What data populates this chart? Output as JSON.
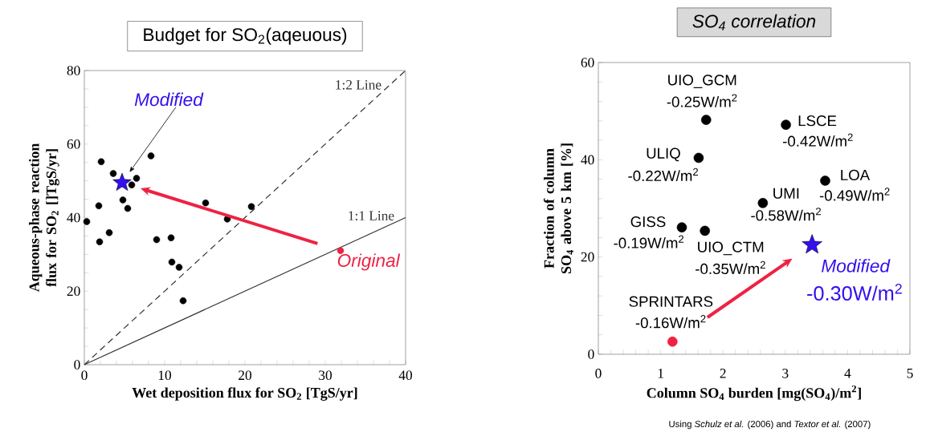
{
  "chart_data": [
    {
      "type": "scatter",
      "title": "Budget for SO$_{2}$(aqeuous)",
      "xlabel": "Wet deposition flux for SO$_{2}$  [TgS/yr]",
      "ylabel": "Aqueous-phase reaction flux for SO$_{2}$ []TgS/yr]",
      "xlim": [
        0,
        40
      ],
      "ylim": [
        0,
        80
      ],
      "xticks": [
        0,
        {
          "value": 2,
          "label": null
        },
        {
          "value": 4,
          "label": null
        },
        {
          "value": 6,
          "label": null
        },
        {
          "value": 8,
          "label": null
        },
        10,
        {
          "value": 12,
          "label": null
        },
        {
          "value": 14,
          "label": null
        },
        {
          "value": 16,
          "label": null
        },
        {
          "value": 18,
          "label": null
        },
        20,
        {
          "value": 22,
          "label": null
        },
        {
          "value": 24,
          "label": null
        },
        {
          "value": 26,
          "label": null
        },
        {
          "value": 28,
          "label": null
        },
        30,
        {
          "value": 32,
          "label": null
        },
        {
          "value": 34,
          "label": null
        },
        {
          "value": 36,
          "label": null
        },
        {
          "value": 38,
          "label": null
        },
        40
      ],
      "yticks": [
        0,
        {
          "value": 5,
          "label": null
        },
        {
          "value": 10,
          "label": null
        },
        {
          "value": 15,
          "label": null
        },
        20,
        {
          "value": 25,
          "label": null
        },
        {
          "value": 30,
          "label": null
        },
        {
          "value": 35,
          "label": null
        },
        40,
        {
          "value": 45,
          "label": null
        },
        {
          "value": 50,
          "label": null
        },
        {
          "value": 55,
          "label": null
        },
        60,
        {
          "value": 65,
          "label": null
        },
        {
          "value": 70,
          "label": null
        },
        {
          "value": 75,
          "label": null
        },
        80
      ],
      "series": [
        {
          "color": "#000000",
          "marker": "circle",
          "x": [
            2.1,
            3.6,
            6.5,
            5.9,
            4.8,
            5.4,
            8.3,
            1.8,
            0.3,
            3.1,
            1.9,
            9.0,
            10.8,
            10.9,
            11.8,
            12.3,
            15.1,
            17.8,
            20.8
          ],
          "values": [
            55.2,
            52.0,
            50.7,
            48.9,
            44.8,
            42.5,
            56.8,
            43.2,
            38.9,
            35.9,
            33.4,
            34.0,
            34.5,
            27.9,
            26.5,
            17.4,
            44.0,
            39.6,
            43.0
          ]
        },
        {
          "type": "line",
          "name": "1:2 Line",
          "color": "#333333",
          "line_style": "dashed",
          "x": [
            0,
            40
          ],
          "values": [
            0,
            80
          ]
        },
        {
          "type": "line",
          "name": "1:1 Line",
          "color": "#333333",
          "line_style": "solid",
          "x": [
            0,
            40
          ],
          "values": [
            0,
            40
          ]
        },
        {
          "name": "Modified",
          "color": "#3311ee",
          "marker": "star",
          "x": [
            4.7
          ],
          "values": [
            49.5
          ]
        },
        {
          "name": "Original",
          "color": "#ee2244",
          "marker": "circle",
          "x": [
            31.9
          ],
          "values": [
            31.0
          ]
        }
      ]
    },
    {
      "type": "scatter",
      "title": "SO$_{4}$ correlation",
      "xlabel": "Column SO$_{4}$ burden [mg(SO$_{4}$)/m$^{2}$]",
      "ylabel": "Fraction of column SO$_{4}$ above 5 km [%]",
      "xlim": [
        0,
        5
      ],
      "ylim": [
        0,
        60
      ],
      "xticks": [
        0,
        {
          "value": 0.2,
          "label": null
        },
        {
          "value": 0.4,
          "label": null
        },
        {
          "value": 0.6,
          "label": null
        },
        {
          "value": 0.8,
          "label": null
        },
        1,
        {
          "value": 1.2,
          "label": null
        },
        {
          "value": 1.4,
          "label": null
        },
        {
          "value": 1.6,
          "label": null
        },
        {
          "value": 1.8,
          "label": null
        },
        2,
        {
          "value": 2.2,
          "label": null
        },
        {
          "value": 2.4,
          "label": null
        },
        {
          "value": 2.6,
          "label": null
        },
        {
          "value": 2.8,
          "label": null
        },
        3,
        {
          "value": 3.2,
          "label": null
        },
        {
          "value": 3.4,
          "label": null
        },
        {
          "value": 3.6,
          "label": null
        },
        {
          "value": 3.8,
          "label": null
        },
        4,
        {
          "value": 4.2,
          "label": null
        },
        {
          "value": 4.4,
          "label": null
        },
        {
          "value": 4.6,
          "label": null
        },
        {
          "value": 4.8,
          "label": null
        },
        5
      ],
      "yticks": [
        0,
        {
          "value": 4,
          "label": null
        },
        {
          "value": 8,
          "label": null
        },
        {
          "value": 12,
          "label": null
        },
        {
          "value": 16,
          "label": null
        },
        20,
        {
          "value": 24,
          "label": null
        },
        {
          "value": 28,
          "label": null
        },
        {
          "value": 32,
          "label": null
        },
        {
          "value": 36,
          "label": null
        },
        40,
        {
          "value": 44,
          "label": null
        },
        {
          "value": 48,
          "label": null
        },
        {
          "value": 52,
          "label": null
        },
        {
          "value": 56,
          "label": null
        },
        60
      ],
      "series": [
        {
          "color": "#000000",
          "marker": "circle",
          "x": [
            1.73,
            3.01,
            1.61,
            3.64,
            2.64,
            1.34,
            1.71
          ],
          "values": [
            48.2,
            47.2,
            40.4,
            35.7,
            31.1,
            26.1,
            25.4
          ]
        },
        {
          "color": "#ee2244",
          "marker": "circle",
          "x": [
            1.19
          ],
          "values": [
            2.6
          ]
        },
        {
          "name": "Modified",
          "color": "#3311ee",
          "marker": "star",
          "x": [
            3.43
          ],
          "values": [
            22.5
          ]
        }
      ],
      "annotations": [
        {
          "text": "UIO_GCM",
          "x": 1.73,
          "y": 48.2
        },
        {
          "text": "-0.25W/m$^{2}$",
          "x": 1.73,
          "y": 48.2
        },
        {
          "text": "LSCE",
          "x": 3.01,
          "y": 47.2
        },
        {
          "text": "-0.42W/m$^{2}$",
          "x": 3.01,
          "y": 47.2
        },
        {
          "text": "ULIQ",
          "x": 1.61,
          "y": 40.4
        },
        {
          "text": "-0.22W/m$^{2}$",
          "x": 1.61,
          "y": 40.4
        },
        {
          "text": "LOA",
          "x": 3.64,
          "y": 35.7
        },
        {
          "text": "-0.49W/m$^{2}$",
          "x": 3.64,
          "y": 35.7
        },
        {
          "text": "UMI",
          "x": 2.64,
          "y": 31.1
        },
        {
          "text": "-0.58W/m$^{2}$",
          "x": 2.64,
          "y": 31.1
        },
        {
          "text": "GISS",
          "x": 1.34,
          "y": 26.1
        },
        {
          "text": "-0.19W/m$^{2}$",
          "x": 1.34,
          "y": 26.1
        },
        {
          "text": "UIO_CTM",
          "x": 1.71,
          "y": 25.4
        },
        {
          "text": "-0.35W/m$^{2}$",
          "x": 1.71,
          "y": 25.4
        },
        {
          "text": "SPRINTARS",
          "x": 1.19,
          "y": 2.6
        },
        {
          "text": "-0.16W/m$^{2}$",
          "x": 1.19,
          "y": 2.6
        },
        {
          "text": "-0.30W/m$^{2}$",
          "x": 3.43,
          "y": 22.5
        },
        "Using *Schulz et al.* (2006) and *Textor et al.* (2007)"
      ]
    }
  ]
}
